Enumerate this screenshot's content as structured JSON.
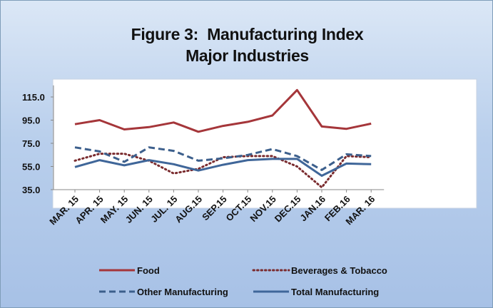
{
  "chart_data": {
    "type": "line",
    "title_line1": "Figure 3:  Manufacturing Index",
    "title_line2": "Major Industries",
    "categories": [
      "MAR. 15",
      "APR. 15",
      "MAY. 15",
      "JUN. 15",
      "JUL. 15",
      "AUG.15",
      "SEP.15",
      "OCT.15",
      "NOV.15",
      "DEC.15",
      "JAN.16",
      "FEB.16",
      "MAR. 16"
    ],
    "ylim": [
      35,
      125
    ],
    "yticks": [
      "35.0",
      "55.0",
      "75.0",
      "95.0",
      "115.0"
    ],
    "grid": false,
    "legend_position": "bottom",
    "series": [
      {
        "name": "Food",
        "color": "#a5363a",
        "dash": "solid",
        "values": [
          91.5,
          95,
          87,
          89,
          93,
          85,
          90,
          93.5,
          99,
          121,
          89.5,
          87.5,
          92
        ]
      },
      {
        "name": "Beverages & Tobacco",
        "color": "#7a2b2e",
        "dash": "dotted",
        "values": [
          60,
          66,
          66,
          60,
          49,
          53,
          63,
          64,
          64,
          55,
          37,
          64,
          63
        ]
      },
      {
        "name": "Other Manufacturing",
        "color": "#3c5f8c",
        "dash": "dashed",
        "values": [
          71.5,
          68,
          59,
          71.5,
          68.5,
          60,
          62,
          65,
          70,
          64,
          52,
          65.5,
          64
        ]
      },
      {
        "name": "Total Manufacturing",
        "color": "#3f6699",
        "dash": "solid",
        "values": [
          54.5,
          60.5,
          56,
          60.5,
          57,
          51.5,
          56.5,
          60.5,
          61.5,
          61.5,
          47,
          57.5,
          57
        ]
      }
    ]
  }
}
